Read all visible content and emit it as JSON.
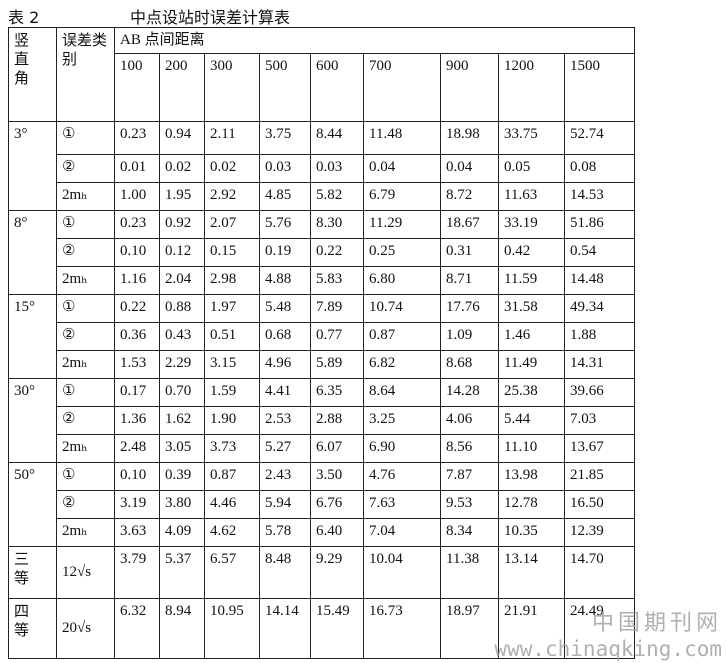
{
  "caption": {
    "label": "表 2",
    "title": "中点设站时误差计算表"
  },
  "table": {
    "header": {
      "angle": "竖直角",
      "kind": "误差类别",
      "distance": "AB 点间距离",
      "columns": [
        "100",
        "200",
        "300",
        "500",
        "600",
        "700",
        "900",
        "1200",
        "1500"
      ]
    },
    "groups": [
      {
        "angle": "3°",
        "rows": [
          {
            "kind": "①",
            "values": [
              "0.23",
              "0.94",
              "2.11",
              "3.75",
              "8.44",
              "11.48",
              "18.98",
              "33.75",
              "52.74"
            ]
          },
          {
            "kind": "②",
            "values": [
              "0.01",
              "0.02",
              "0.02",
              "0.03",
              "0.03",
              "0.04",
              "0.04",
              "0.05",
              "0.08"
            ]
          },
          {
            "kind": "2mₕ",
            "values": [
              "1.00",
              "1.95",
              "2.92",
              "4.85",
              "5.82",
              "6.79",
              "8.72",
              "11.63",
              "14.53"
            ]
          }
        ]
      },
      {
        "angle": "8°",
        "rows": [
          {
            "kind": "①",
            "values": [
              "0.23",
              "0.92",
              "2.07",
              "5.76",
              "8.30",
              "11.29",
              "18.67",
              "33.19",
              "51.86"
            ]
          },
          {
            "kind": "②",
            "values": [
              "0.10",
              "0.12",
              "0.15",
              "0.19",
              "0.22",
              "0.25",
              "0.31",
              "0.42",
              "0.54"
            ]
          },
          {
            "kind": "2mₕ",
            "values": [
              "1.16",
              "2.04",
              "2.98",
              "4.88",
              "5.83",
              "6.80",
              "8.71",
              "11.59",
              "14.48"
            ]
          }
        ]
      },
      {
        "angle": "15°",
        "rows": [
          {
            "kind": "①",
            "values": [
              "0.22",
              "0.88",
              "1.97",
              "5.48",
              "7.89",
              "10.74",
              "17.76",
              "31.58",
              "49.34"
            ]
          },
          {
            "kind": "②",
            "values": [
              "0.36",
              "0.43",
              "0.51",
              "0.68",
              "0.77",
              "0.87",
              "1.09",
              "1.46",
              "1.88"
            ]
          },
          {
            "kind": "2mₕ",
            "values": [
              "1.53",
              "2.29",
              "3.15",
              "4.96",
              "5.89",
              "6.82",
              "8.68",
              "11.49",
              "14.31"
            ]
          }
        ]
      },
      {
        "angle": "30°",
        "rows": [
          {
            "kind": "①",
            "values": [
              "0.17",
              "0.70",
              "1.59",
              "4.41",
              "6.35",
              "8.64",
              "14.28",
              "25.38",
              "39.66"
            ]
          },
          {
            "kind": "②",
            "values": [
              "1.36",
              "1.62",
              "1.90",
              "2.53",
              "2.88",
              "3.25",
              "4.06",
              "5.44",
              "7.03"
            ]
          },
          {
            "kind": "2mₕ",
            "values": [
              "2.48",
              "3.05",
              "3.73",
              "5.27",
              "6.07",
              "6.90",
              "8.56",
              "11.10",
              "13.67"
            ]
          }
        ]
      },
      {
        "angle": "50°",
        "rows": [
          {
            "kind": "①",
            "values": [
              "0.10",
              "0.39",
              "0.87",
              "2.43",
              "3.50",
              "4.76",
              "7.87",
              "13.98",
              "21.85"
            ]
          },
          {
            "kind": "②",
            "values": [
              "3.19",
              "3.80",
              "4.46",
              "5.94",
              "6.76",
              "7.63",
              "9.53",
              "12.78",
              "16.50"
            ]
          },
          {
            "kind": "2mₕ",
            "values": [
              "3.63",
              "4.09",
              "4.62",
              "5.78",
              "6.40",
              "7.04",
              "8.34",
              "10.35",
              "12.39"
            ]
          }
        ]
      }
    ],
    "grades": [
      {
        "grade": "三等",
        "kind": "12√s",
        "values": [
          "3.79",
          "5.37",
          "6.57",
          "8.48",
          "9.29",
          "10.04",
          "11.38",
          "13.14",
          "14.70"
        ]
      },
      {
        "grade": "四等",
        "kind": "20√s",
        "values": [
          "6.32",
          "8.94",
          "10.95",
          "14.14",
          "15.49",
          "16.73",
          "18.97",
          "21.91",
          "24.49"
        ]
      }
    ]
  },
  "watermark": {
    "name": "中国期刊网",
    "url": "www.chinaqking.com"
  }
}
